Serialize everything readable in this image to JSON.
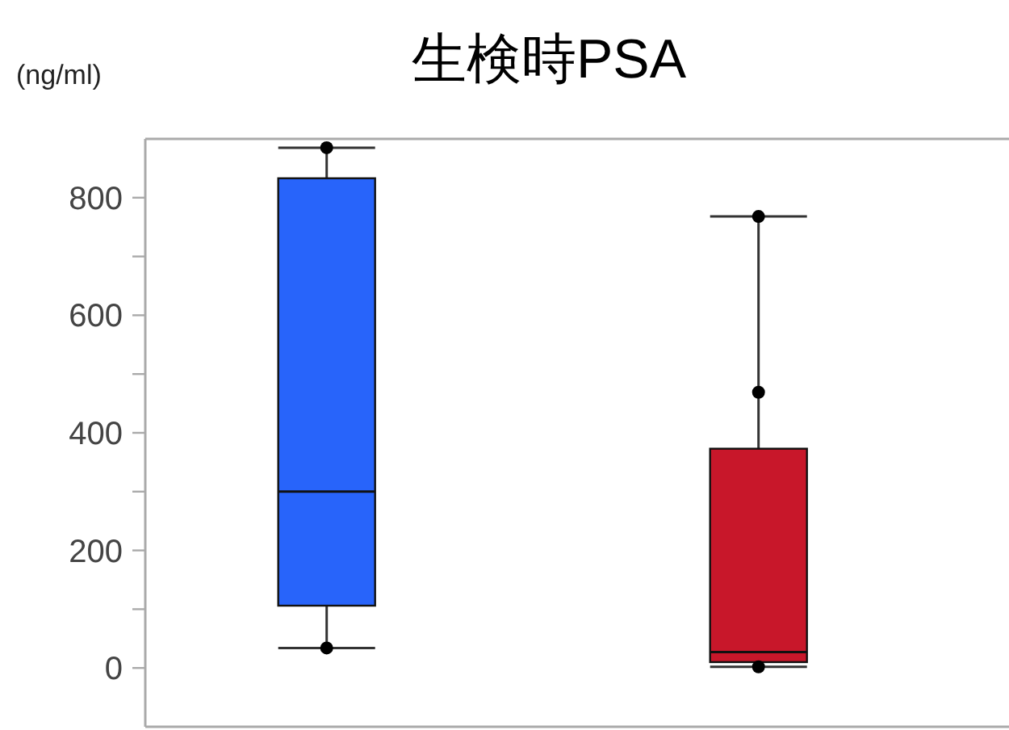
{
  "chart_data": {
    "type": "box",
    "title": "生検時PSA",
    "ylabel": "(ng/ml)",
    "categories": [
      null,
      null
    ],
    "boxes": [
      {
        "low": 34,
        "q1": 106,
        "median": 300,
        "q3": 833,
        "high": 885,
        "outliers": [
          885,
          34
        ]
      },
      {
        "low": 2,
        "q1": 10,
        "median": 27,
        "q3": 373,
        "high": 768,
        "outliers": [
          768,
          469,
          2
        ]
      }
    ],
    "colors": [
      "#2864fa",
      "#c8172a"
    ],
    "ylim": [
      -100,
      900
    ],
    "yticks": [
      0,
      {
        "value": 100,
        "label": null
      },
      200,
      {
        "value": 300,
        "label": null
      },
      400,
      {
        "value": 500,
        "label": null
      },
      600,
      {
        "value": 700,
        "label": null
      },
      800
    ],
    "grid": false
  }
}
